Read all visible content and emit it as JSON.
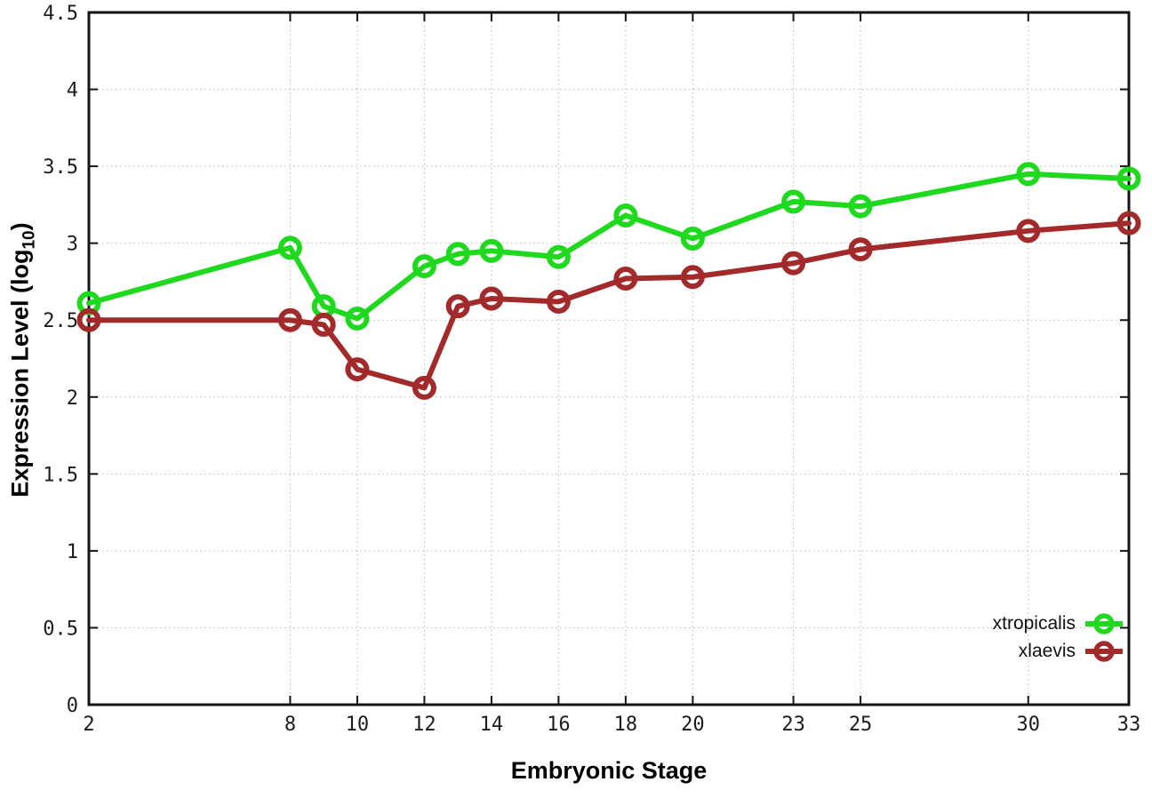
{
  "chart": {
    "ylabel_parts": {
      "prefix": "Expression Level (log",
      "sub": "10",
      "suffix": ")"
    }
  },
  "chart_data": {
    "type": "line",
    "title": "",
    "xlabel": "Embryonic Stage",
    "ylabel": "Expression Level (log10)",
    "x": [
      2,
      8,
      9,
      10,
      12,
      13,
      14,
      16,
      18,
      20,
      23,
      25,
      30,
      33
    ],
    "series": [
      {
        "name": "xtropicalis",
        "color": "#1fd91f",
        "values": [
          2.61,
          2.97,
          2.59,
          2.51,
          2.85,
          2.93,
          2.95,
          2.91,
          3.18,
          3.03,
          3.27,
          3.24,
          3.45,
          3.42
        ]
      },
      {
        "name": "xlaevis",
        "color": "#a32a2a",
        "values": [
          2.5,
          2.5,
          2.47,
          2.18,
          2.06,
          2.59,
          2.64,
          2.62,
          2.77,
          2.78,
          2.87,
          2.96,
          3.08,
          3.13
        ]
      }
    ],
    "xlim": [
      2,
      33
    ],
    "ylim": [
      0,
      4.5
    ],
    "xticks": [
      2,
      8,
      10,
      12,
      14,
      16,
      18,
      20,
      23,
      25,
      30,
      33
    ],
    "yticks": [
      0,
      0.5,
      1,
      1.5,
      2,
      2.5,
      3,
      3.5,
      4,
      4.5
    ],
    "grid": true,
    "grid_style": "dotted",
    "marker": "open-circle",
    "legend_position": "bottom-right",
    "colors": {
      "background": "#ffffff",
      "border": "#141414",
      "grid": "#b8b8b8",
      "tick_text": "#1c1c1c"
    }
  }
}
